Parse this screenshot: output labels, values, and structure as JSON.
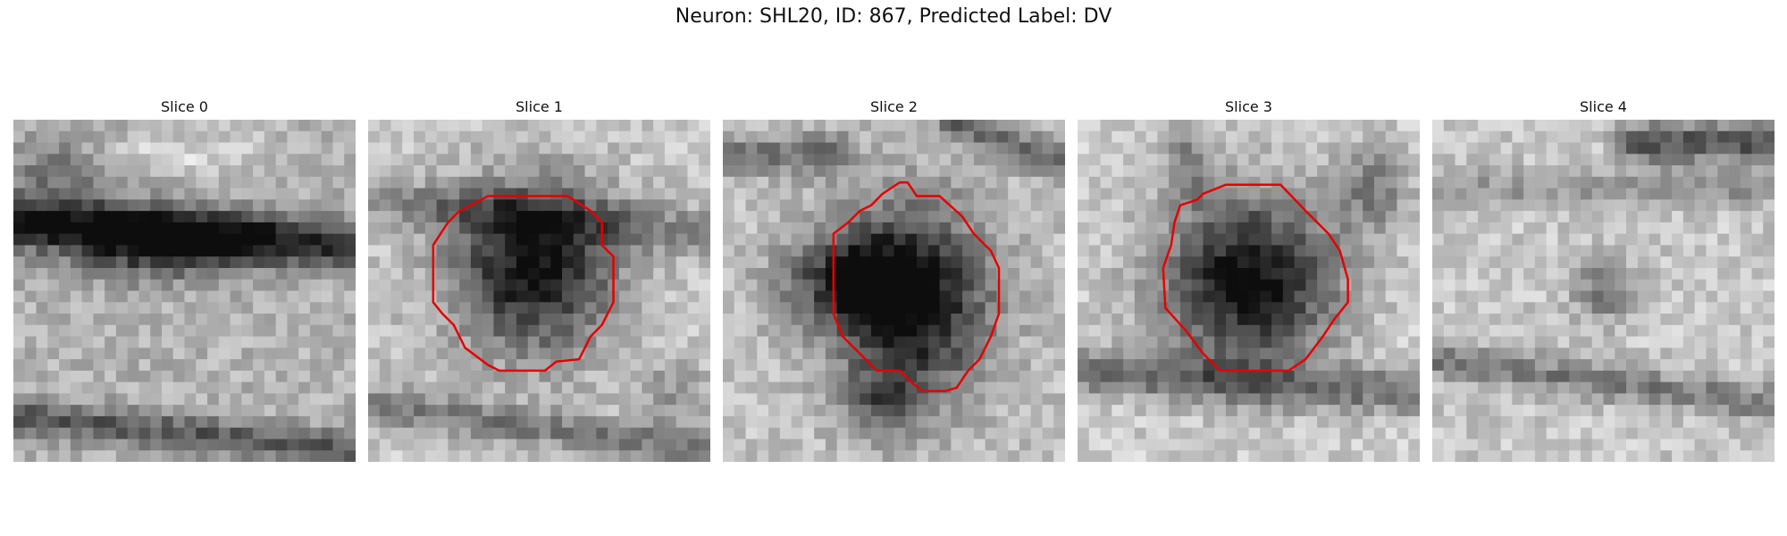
{
  "figure": {
    "title": "Neuron: SHL20, ID: 867, Predicted Label: DV"
  },
  "colors": {
    "contour": "#e60000",
    "background": "#ffffff"
  },
  "panels": [
    {
      "title": "Slice 0",
      "has_contour": false
    },
    {
      "title": "Slice 1",
      "has_contour": true
    },
    {
      "title": "Slice 2",
      "has_contour": true
    },
    {
      "title": "Slice 3",
      "has_contour": true
    },
    {
      "title": "Slice 4",
      "has_contour": false
    }
  ]
}
